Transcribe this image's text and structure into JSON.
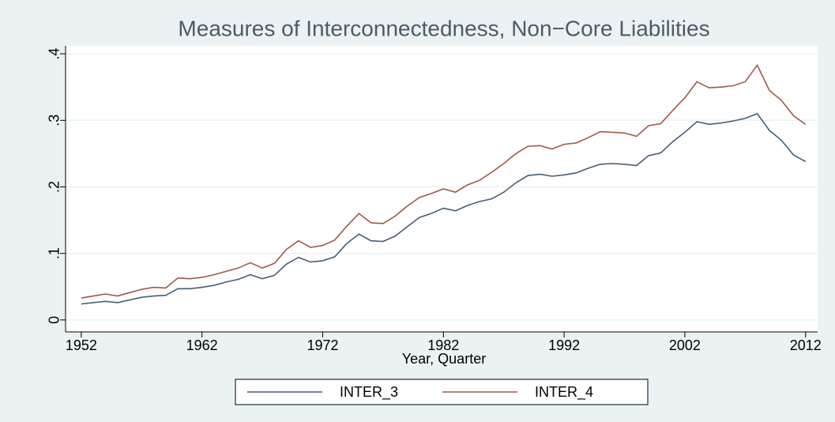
{
  "chart_data": {
    "type": "line",
    "title": "Measures of Interconnectedness, Non−Core Liabilities",
    "x_label": "Year, Quarter",
    "x": [
      1952,
      1953,
      1954,
      1955,
      1956,
      1957,
      1958,
      1959,
      1960,
      1961,
      1962,
      1963,
      1964,
      1965,
      1966,
      1967,
      1968,
      1969,
      1970,
      1971,
      1972,
      1973,
      1974,
      1975,
      1976,
      1977,
      1978,
      1979,
      1980,
      1981,
      1982,
      1983,
      1984,
      1985,
      1986,
      1987,
      1988,
      1989,
      1990,
      1991,
      1992,
      1993,
      1994,
      1995,
      1996,
      1997,
      1998,
      1999,
      2000,
      2001,
      2002,
      2003,
      2004,
      2005,
      2006,
      2007,
      2008,
      2009,
      2010,
      2011,
      2012
    ],
    "series": [
      {
        "name": "INTER_3",
        "color": "#4a5d72",
        "values": [
          0.024,
          0.026,
          0.028,
          0.026,
          0.03,
          0.034,
          0.036,
          0.037,
          0.047,
          0.047,
          0.049,
          0.052,
          0.057,
          0.061,
          0.068,
          0.062,
          0.067,
          0.084,
          0.094,
          0.087,
          0.089,
          0.095,
          0.115,
          0.129,
          0.119,
          0.118,
          0.126,
          0.14,
          0.154,
          0.16,
          0.168,
          0.164,
          0.172,
          0.178,
          0.182,
          0.192,
          0.206,
          0.217,
          0.219,
          0.216,
          0.218,
          0.221,
          0.228,
          0.234,
          0.235,
          0.234,
          0.232,
          0.247,
          0.251,
          0.268,
          0.282,
          0.298,
          0.294,
          0.296,
          0.299,
          0.303,
          0.31,
          0.285,
          0.27,
          0.248,
          0.238
        ]
      },
      {
        "name": "INTER_4",
        "color": "#9c5a4c",
        "values": [
          0.033,
          0.036,
          0.039,
          0.036,
          0.041,
          0.046,
          0.049,
          0.048,
          0.063,
          0.062,
          0.064,
          0.068,
          0.073,
          0.078,
          0.086,
          0.078,
          0.085,
          0.106,
          0.119,
          0.109,
          0.112,
          0.12,
          0.141,
          0.16,
          0.146,
          0.145,
          0.156,
          0.171,
          0.184,
          0.19,
          0.197,
          0.192,
          0.203,
          0.21,
          0.222,
          0.235,
          0.25,
          0.261,
          0.262,
          0.257,
          0.264,
          0.266,
          0.274,
          0.283,
          0.282,
          0.281,
          0.276,
          0.292,
          0.295,
          0.315,
          0.334,
          0.358,
          0.349,
          0.35,
          0.352,
          0.358,
          0.383,
          0.345,
          0.33,
          0.307,
          0.294
        ]
      }
    ],
    "xlim": [
      1950.7,
      2013
    ],
    "xticks": [
      1952,
      1962,
      1972,
      1982,
      1992,
      2002,
      2012
    ],
    "ylim": [
      -0.018,
      0.412
    ],
    "yticks": [
      0,
      {
        "value": 0.1,
        "label": ".1"
      },
      {
        "value": 0.2,
        "label": ".2"
      },
      {
        "value": 0.3,
        "label": ".3"
      },
      {
        "value": 0.4,
        "label": ".4"
      }
    ],
    "grid": true,
    "legend": "bottom"
  }
}
